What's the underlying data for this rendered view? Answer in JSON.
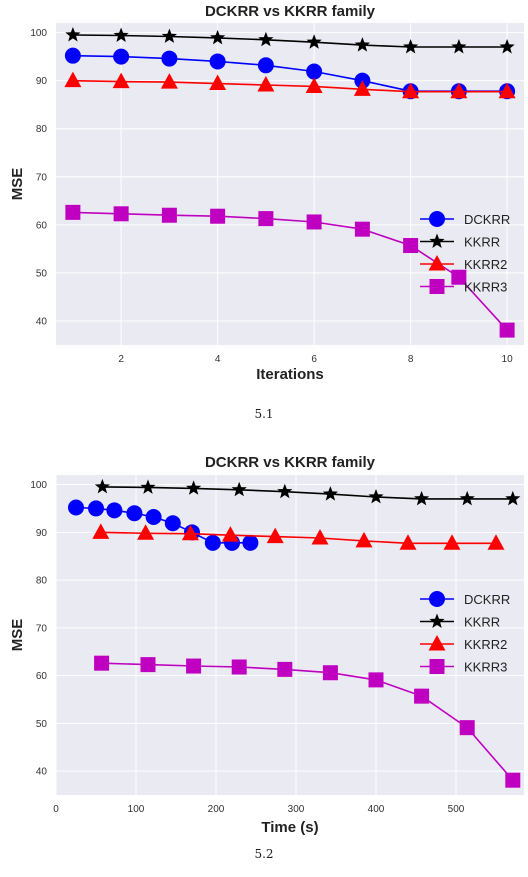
{
  "chart_data": [
    {
      "type": "line",
      "title": "DCKRR vs KKRR family",
      "xlabel": "Iterations",
      "ylabel": "MSE",
      "xlim": [
        0.65,
        10.35
      ],
      "ylim": [
        35,
        102
      ],
      "xticks": [
        2,
        4,
        6,
        8,
        10
      ],
      "yticks": [
        40,
        50,
        60,
        70,
        80,
        90,
        100
      ],
      "grid": true,
      "legend_position": "center-right",
      "background": "#EAEAF2",
      "series": [
        {
          "name": "DCKRR",
          "color": "#0000FF",
          "marker": "circle",
          "x": [
            1,
            2,
            3,
            4,
            5,
            6,
            7,
            8,
            9,
            10
          ],
          "y": [
            95.2,
            95.0,
            94.6,
            94.0,
            93.2,
            91.9,
            90.0,
            87.8,
            87.8,
            87.8
          ]
        },
        {
          "name": "KKRR",
          "color": "#000000",
          "marker": "star",
          "x": [
            1,
            2,
            3,
            4,
            5,
            6,
            7,
            8,
            9,
            10
          ],
          "y": [
            99.5,
            99.4,
            99.2,
            98.9,
            98.5,
            98.0,
            97.4,
            97.0,
            97.0,
            97.0
          ]
        },
        {
          "name": "KKRR2",
          "color": "#FF0000",
          "marker": "triangle",
          "x": [
            1,
            2,
            3,
            4,
            5,
            6,
            7,
            8,
            9,
            10
          ],
          "y": [
            90.0,
            89.8,
            89.7,
            89.4,
            89.1,
            88.8,
            88.2,
            87.7,
            87.7,
            87.7
          ]
        },
        {
          "name": "KKRR3",
          "color": "#C000C0",
          "marker": "square",
          "x": [
            1,
            2,
            3,
            4,
            5,
            6,
            7,
            8,
            9,
            10
          ],
          "y": [
            62.6,
            62.3,
            62.0,
            61.8,
            61.3,
            60.6,
            59.1,
            55.7,
            49.1,
            38.1
          ]
        }
      ],
      "caption": "5.1"
    },
    {
      "type": "line",
      "title": "DCKRR vs KKRR family",
      "xlabel": "Time (s)",
      "ylabel": "MSE",
      "xlim": [
        0,
        585
      ],
      "ylim": [
        35,
        102
      ],
      "xticks": [
        0,
        100,
        200,
        300,
        400,
        500
      ],
      "yticks": [
        40,
        50,
        60,
        70,
        80,
        90,
        100
      ],
      "grid": true,
      "legend_position": "center-right",
      "background": "#EAEAF2",
      "series": [
        {
          "name": "DCKRR",
          "color": "#0000FF",
          "marker": "circle",
          "x": [
            25,
            50,
            73,
            98,
            122,
            146,
            170,
            196,
            220,
            243
          ],
          "y": [
            95.2,
            95.0,
            94.6,
            94.0,
            93.2,
            91.9,
            90.0,
            87.8,
            87.8,
            87.8
          ]
        },
        {
          "name": "KKRR",
          "color": "#000000",
          "marker": "star",
          "x": [
            58,
            115,
            172,
            229,
            286,
            343,
            400,
            457,
            514,
            571
          ],
          "y": [
            99.5,
            99.4,
            99.2,
            98.9,
            98.5,
            98.0,
            97.4,
            97.0,
            97.0,
            97.0
          ]
        },
        {
          "name": "KKRR2",
          "color": "#FF0000",
          "marker": "triangle",
          "x": [
            56,
            112,
            168,
            218,
            274,
            330,
            385,
            440,
            495,
            550
          ],
          "y": [
            90.0,
            89.8,
            89.7,
            89.4,
            89.1,
            88.8,
            88.2,
            87.7,
            87.7,
            87.7
          ]
        },
        {
          "name": "KKRR3",
          "color": "#C000C0",
          "marker": "square",
          "x": [
            57,
            115,
            172,
            229,
            286,
            343,
            400,
            457,
            514,
            571
          ],
          "y": [
            62.6,
            62.3,
            62.0,
            61.8,
            61.3,
            60.6,
            59.1,
            55.7,
            49.1,
            38.1
          ]
        }
      ],
      "caption": "5.2"
    }
  ]
}
